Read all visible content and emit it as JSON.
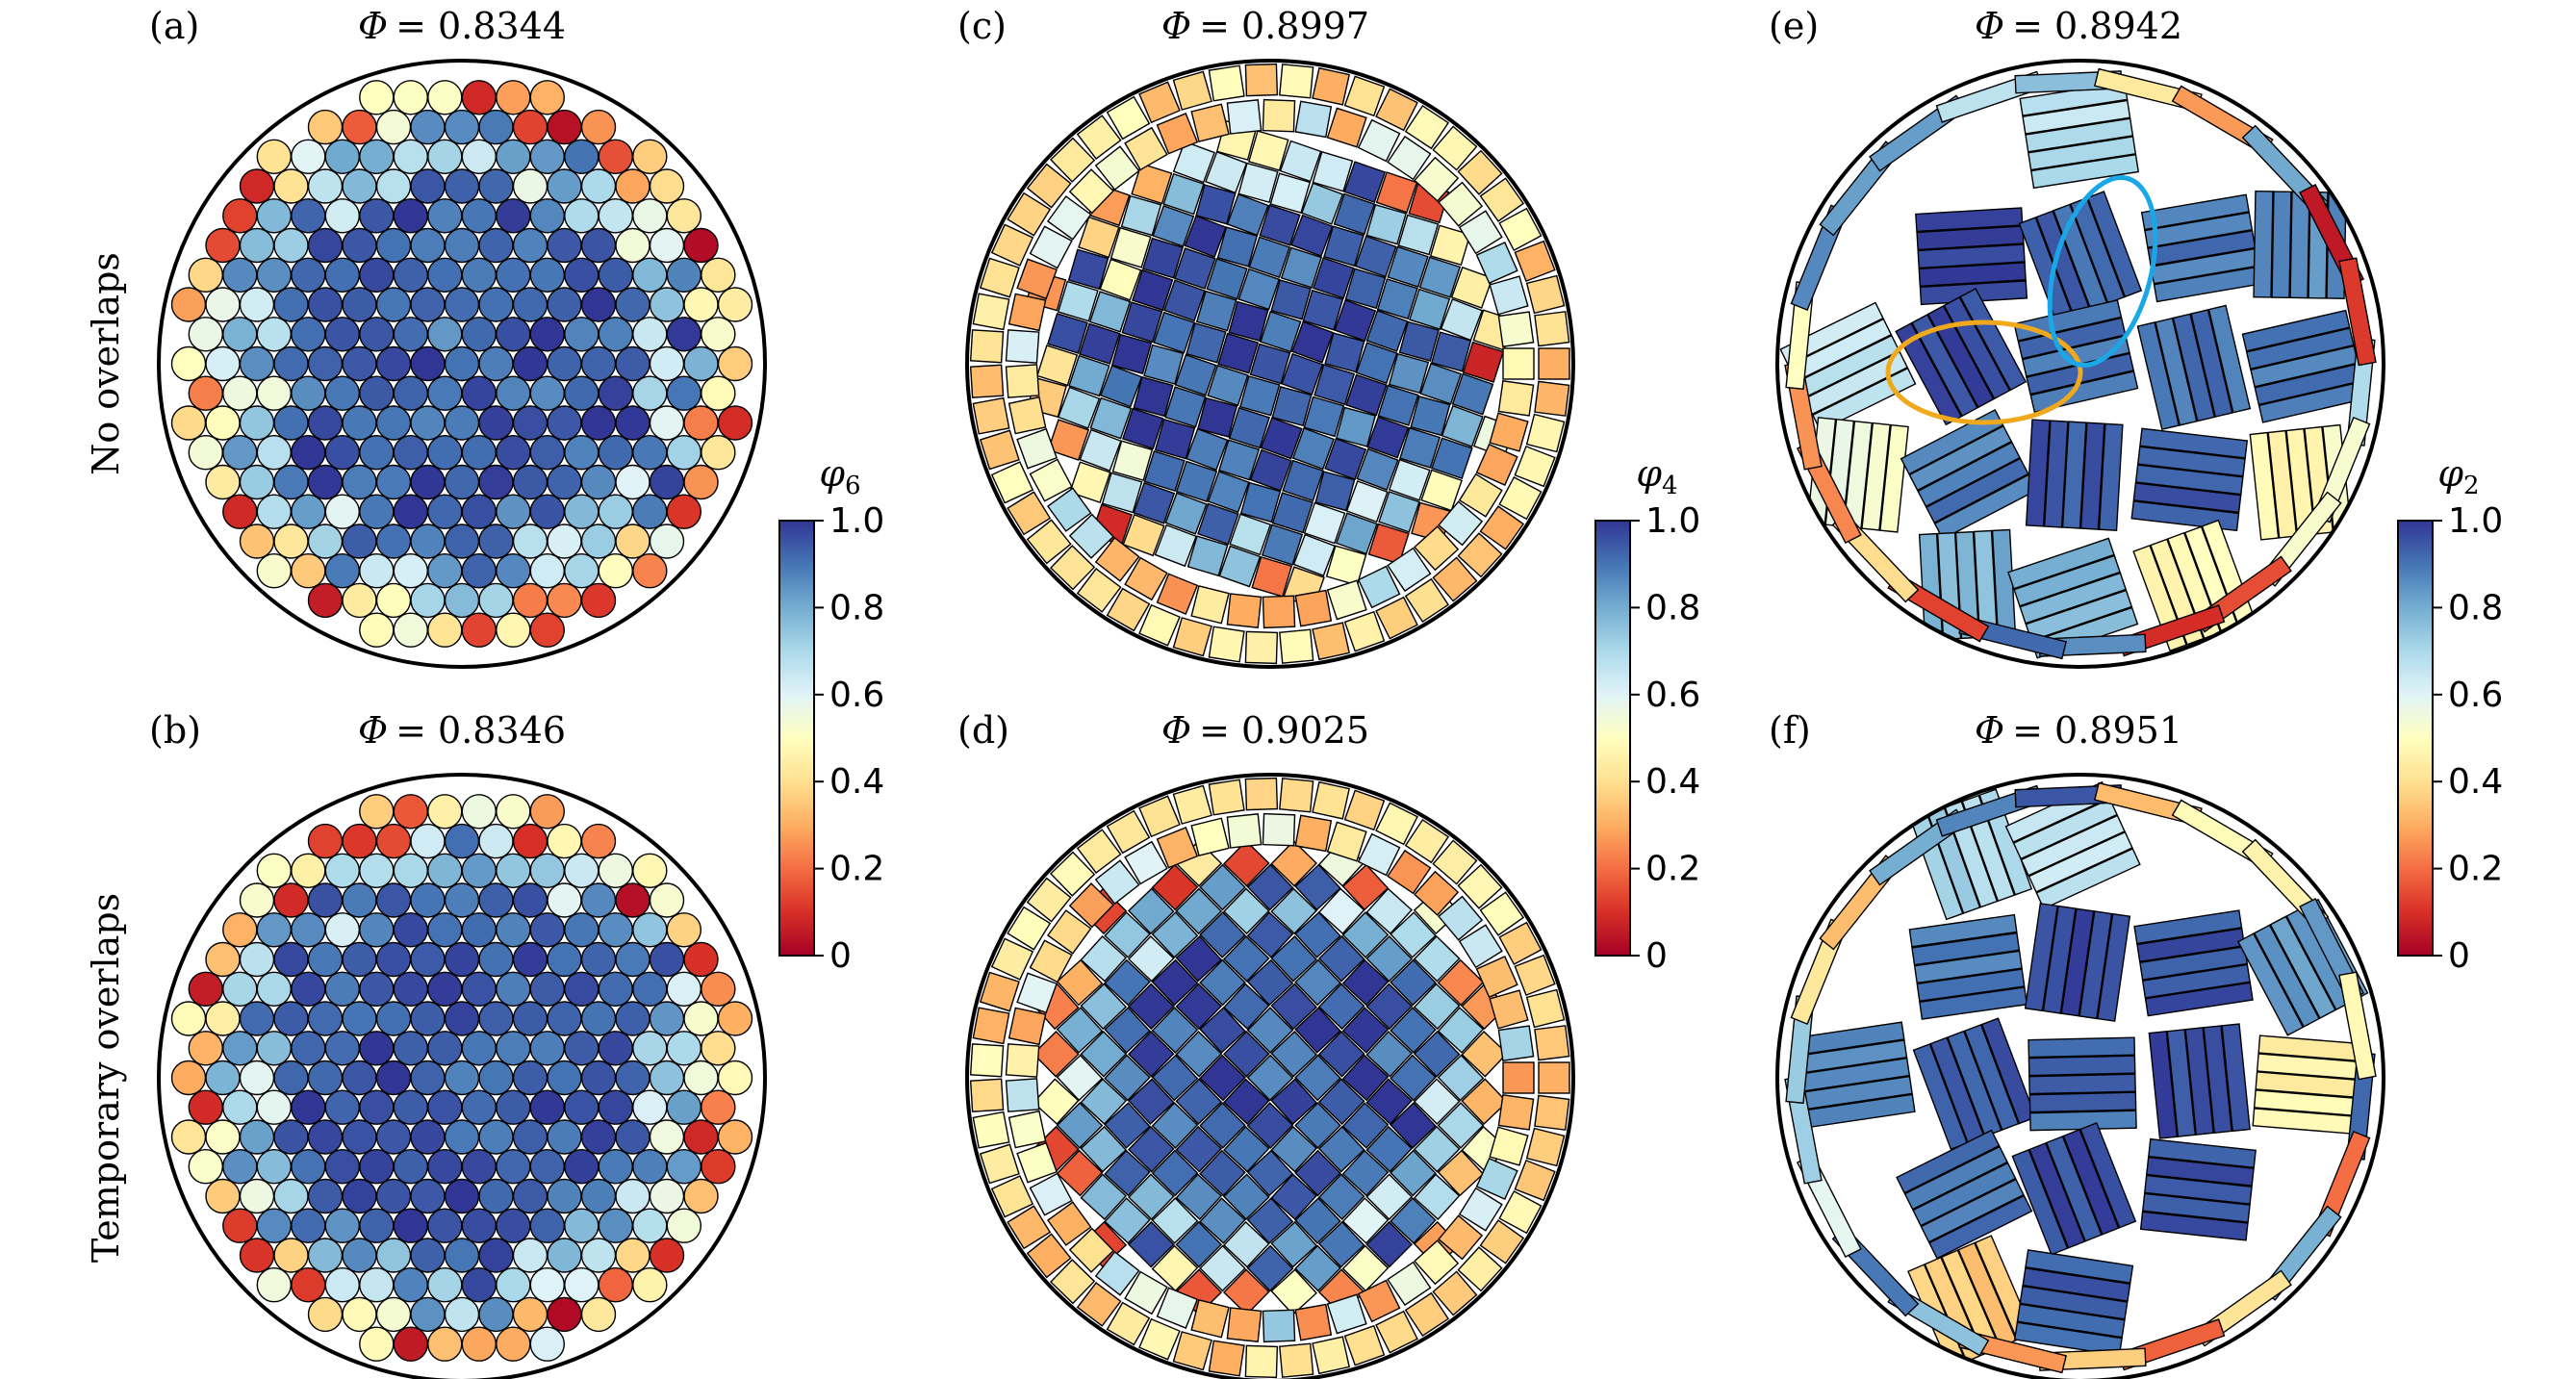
{
  "row_labels": [
    "No overlaps",
    "Temporary overlaps"
  ],
  "panels": [
    {
      "label": "(a)",
      "title_symbol": "Φ",
      "title_value": "= 0.8344",
      "shape": "disk",
      "order_parameter": "φ6"
    },
    {
      "label": "(c)",
      "title_symbol": "Φ",
      "title_value": "= 0.8997",
      "shape": "square",
      "order_parameter": "φ4"
    },
    {
      "label": "(e)",
      "title_symbol": "Φ",
      "title_value": "= 0.8942",
      "shape": "rod",
      "order_parameter": "φ2"
    },
    {
      "label": "(b)",
      "title_symbol": "Φ",
      "title_value": "= 0.8346",
      "shape": "disk",
      "order_parameter": "φ6"
    },
    {
      "label": "(d)",
      "title_symbol": "Φ",
      "title_value": "= 0.9025",
      "shape": "square",
      "order_parameter": "φ4"
    },
    {
      "label": "(f)",
      "title_symbol": "Φ",
      "title_value": "= 0.8951",
      "shape": "rod",
      "order_parameter": "φ2"
    }
  ],
  "colorbars": [
    {
      "symbol": "φ",
      "subscript": "6"
    },
    {
      "symbol": "φ",
      "subscript": "4"
    },
    {
      "symbol": "φ",
      "subscript": "2"
    }
  ],
  "colorbar_ticks": [
    "0",
    "0.2",
    "0.4",
    "0.6",
    "0.8",
    "1.0"
  ],
  "colorbar_range": [
    0,
    1
  ],
  "colormap_stops": [
    "#a50026",
    "#d73027",
    "#f46d43",
    "#fdae61",
    "#fee090",
    "#ffffbf",
    "#e0f3f8",
    "#abd9e9",
    "#74add1",
    "#4575b4",
    "#313695"
  ],
  "highlight_colors": {
    "blue_ellipse": "#1aa7e8",
    "orange_ellipse": "#f0a81c"
  },
  "chart_data": [
    {
      "type": "other",
      "title": "Φ = 0.8344",
      "panel": "(a)",
      "particles": "disks",
      "color_by": "φ6",
      "vmin": 0,
      "vmax": 1
    },
    {
      "type": "other",
      "title": "Φ = 0.8346",
      "panel": "(b)",
      "particles": "disks",
      "color_by": "φ6",
      "vmin": 0,
      "vmax": 1
    },
    {
      "type": "other",
      "title": "Φ = 0.8997",
      "panel": "(c)",
      "particles": "squares",
      "color_by": "φ4",
      "vmin": 0,
      "vmax": 1
    },
    {
      "type": "other",
      "title": "Φ = 0.9025",
      "panel": "(d)",
      "particles": "squares",
      "color_by": "φ4",
      "vmin": 0,
      "vmax": 1
    },
    {
      "type": "other",
      "title": "Φ = 0.8942",
      "panel": "(e)",
      "particles": "rods",
      "color_by": "φ2",
      "vmin": 0,
      "vmax": 1
    },
    {
      "type": "other",
      "title": "Φ = 0.8951",
      "panel": "(f)",
      "particles": "rods",
      "color_by": "φ2",
      "vmin": 0,
      "vmax": 1
    }
  ]
}
